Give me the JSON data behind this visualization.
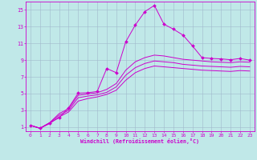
{
  "xlabel": "Windchill (Refroidissement éolien,°C)",
  "bg_color": "#c0e8e8",
  "grid_color": "#a0b8cc",
  "line_color": "#cc00cc",
  "xlim": [
    -0.5,
    23.5
  ],
  "ylim": [
    0.5,
    16.0
  ],
  "xticks": [
    0,
    1,
    2,
    3,
    4,
    5,
    6,
    7,
    8,
    9,
    10,
    11,
    12,
    13,
    14,
    15,
    16,
    17,
    18,
    19,
    20,
    21,
    22,
    23
  ],
  "yticks": [
    1,
    3,
    5,
    7,
    9,
    11,
    13,
    15
  ],
  "curve1_x": [
    0,
    1,
    2,
    3,
    4,
    5,
    6,
    7,
    8,
    9,
    10,
    11,
    12,
    13,
    14,
    15,
    16,
    17,
    18,
    19,
    20,
    21,
    22,
    23
  ],
  "curve1_y": [
    1.2,
    0.85,
    1.5,
    2.1,
    3.3,
    5.05,
    5.1,
    5.25,
    8.0,
    7.5,
    11.2,
    13.2,
    14.8,
    15.55,
    13.3,
    12.7,
    12.0,
    10.7,
    9.3,
    9.2,
    9.15,
    9.05,
    9.2,
    9.0
  ],
  "curve2_x": [
    0,
    1,
    2,
    3,
    4,
    5,
    6,
    7,
    8,
    9,
    10,
    11,
    12,
    13,
    14,
    15,
    16,
    17,
    18,
    19,
    20,
    21,
    22,
    23
  ],
  "curve2_y": [
    1.2,
    0.85,
    1.5,
    2.6,
    3.2,
    4.8,
    4.95,
    5.1,
    5.5,
    6.2,
    7.8,
    8.8,
    9.3,
    9.6,
    9.5,
    9.3,
    9.1,
    9.0,
    8.9,
    8.8,
    8.75,
    8.7,
    8.8,
    8.75
  ],
  "curve3_x": [
    0,
    1,
    2,
    3,
    4,
    5,
    6,
    7,
    8,
    9,
    10,
    11,
    12,
    13,
    14,
    15,
    16,
    17,
    18,
    19,
    20,
    21,
    22,
    23
  ],
  "curve3_y": [
    1.2,
    0.85,
    1.5,
    2.4,
    3.0,
    4.5,
    4.7,
    4.85,
    5.15,
    5.8,
    7.2,
    8.1,
    8.6,
    8.9,
    8.8,
    8.7,
    8.5,
    8.4,
    8.3,
    8.25,
    8.2,
    8.15,
    8.25,
    8.2
  ],
  "curve4_x": [
    0,
    1,
    2,
    3,
    4,
    5,
    6,
    7,
    8,
    9,
    10,
    11,
    12,
    13,
    14,
    15,
    16,
    17,
    18,
    19,
    20,
    21,
    22,
    23
  ],
  "curve4_y": [
    1.2,
    0.85,
    1.4,
    2.2,
    2.8,
    4.1,
    4.4,
    4.6,
    4.9,
    5.4,
    6.6,
    7.5,
    8.0,
    8.3,
    8.2,
    8.1,
    8.0,
    7.9,
    7.8,
    7.75,
    7.7,
    7.65,
    7.75,
    7.7
  ]
}
